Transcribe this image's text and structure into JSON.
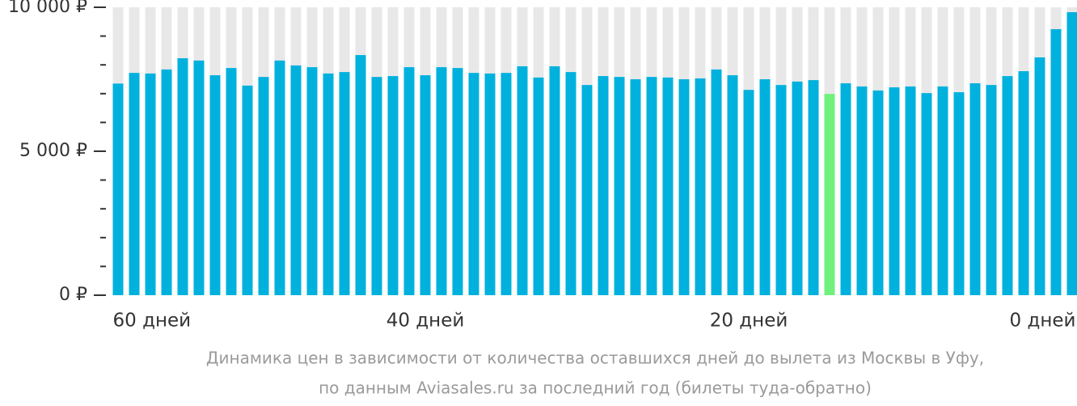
{
  "chart_data": {
    "type": "bar",
    "caption": [
      "Динамика цен в зависимости от количества оставшихся дней до вылета из Москвы в Уфу,",
      "по данным Aviasales.ru за последний год (билеты туда-обратно)"
    ],
    "categories": [
      "60 дней",
      null,
      null,
      null,
      null,
      null,
      null,
      null,
      null,
      null,
      null,
      null,
      null,
      null,
      null,
      null,
      null,
      null,
      null,
      "40 дней",
      null,
      null,
      null,
      null,
      null,
      null,
      null,
      null,
      null,
      null,
      null,
      null,
      null,
      null,
      null,
      null,
      null,
      null,
      null,
      "20 дней",
      null,
      null,
      null,
      null,
      null,
      null,
      null,
      null,
      null,
      null,
      null,
      null,
      null,
      null,
      null,
      null,
      null,
      null,
      null,
      "0 дней"
    ],
    "values": [
      7350,
      7720,
      7700,
      7840,
      8230,
      8150,
      7640,
      7890,
      7280,
      7580,
      8150,
      7980,
      7920,
      7700,
      7750,
      8340,
      7580,
      7610,
      7920,
      7640,
      7920,
      7890,
      7720,
      7700,
      7720,
      7950,
      7560,
      7950,
      7750,
      7300,
      7610,
      7580,
      7500,
      7580,
      7560,
      7500,
      7530,
      7840,
      7640,
      7130,
      7500,
      7300,
      7420,
      7470,
      6990,
      7360,
      7250,
      7110,
      7220,
      7250,
      7020,
      7250,
      7050,
      7360,
      7300,
      7610,
      7780,
      8260,
      9240,
      9830
    ],
    "color": "#00b1de",
    "highlight": {
      "index": 44,
      "color": "#6ff17c"
    },
    "ylim": [
      0,
      10000
    ],
    "yticks": [
      {
        "value": 0,
        "label": "0 ₽"
      },
      {
        "value": 5000,
        "label": "5 000 ₽"
      },
      {
        "value": 10000,
        "label": "10 000 ₽"
      }
    ],
    "yticks_minor": [
      1000,
      2000,
      3000,
      4000,
      6000,
      7000,
      8000,
      9000
    ]
  }
}
